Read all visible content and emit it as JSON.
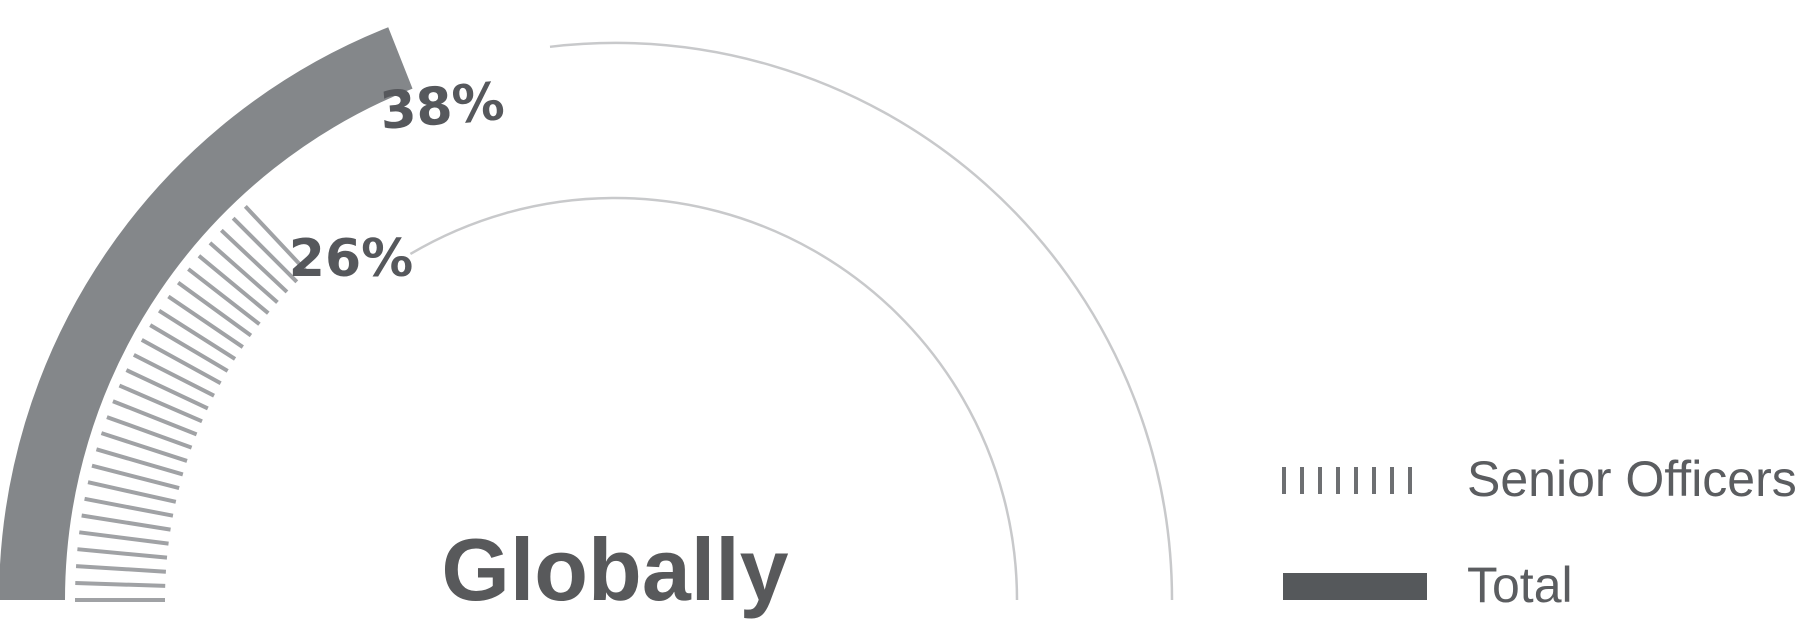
{
  "chart_data": {
    "type": "gauge",
    "center_label": "Globally",
    "series": [
      {
        "name": "Senior Officers",
        "value": 26,
        "value_label": "26%",
        "max": 100,
        "color": "#a0a2a5",
        "style": "hatched"
      },
      {
        "name": "Total",
        "value": 38,
        "value_label": "38%",
        "max": 100,
        "color": "#84878a",
        "style": "solid"
      }
    ],
    "legend": {
      "placement": "right",
      "items": [
        {
          "label": "Senior Officers",
          "swatch": "hatched",
          "color": "#6d6f72"
        },
        {
          "label": "Total",
          "swatch": "solid",
          "color": "#55585b"
        }
      ]
    },
    "track_color": "#c8c9cb"
  }
}
